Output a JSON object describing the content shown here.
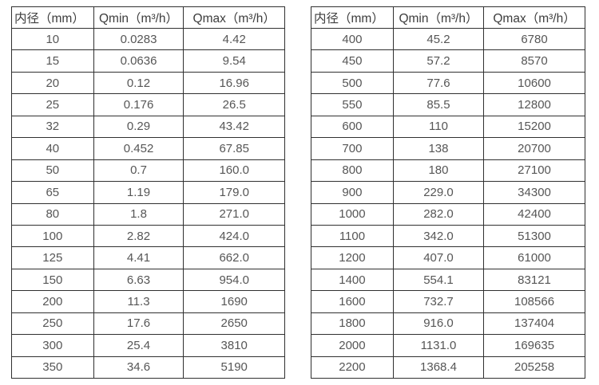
{
  "colors": {
    "background": "#ffffff",
    "border": "#303030",
    "header_text": "#3d3d3d",
    "cell_text": "#565656"
  },
  "tables": [
    {
      "name": "small-diameters",
      "headers": [
        "内径（mm）",
        "Qmin（m³/h）",
        "Qmax（m³/h）"
      ],
      "rows": [
        [
          "10",
          "0.0283",
          "4.42"
        ],
        [
          "15",
          "0.0636",
          "9.54"
        ],
        [
          "20",
          "0.12",
          "16.96"
        ],
        [
          "25",
          "0.176",
          "26.5"
        ],
        [
          "32",
          "0.29",
          "43.42"
        ],
        [
          "40",
          "0.452",
          "67.85"
        ],
        [
          "50",
          "0.7",
          "160.0"
        ],
        [
          "65",
          "1.19",
          "179.0"
        ],
        [
          "80",
          "1.8",
          "271.0"
        ],
        [
          "100",
          "2.82",
          "424.0"
        ],
        [
          "125",
          "4.41",
          "662.0"
        ],
        [
          "150",
          "6.63",
          "954.0"
        ],
        [
          "200",
          "11.3",
          "1690"
        ],
        [
          "250",
          "17.6",
          "2650"
        ],
        [
          "300",
          "25.4",
          "3810"
        ],
        [
          "350",
          "34.6",
          "5190"
        ]
      ]
    },
    {
      "name": "large-diameters",
      "headers": [
        "内径（mm）",
        "Qmin（m³/h）",
        "Qmax（m³/h）"
      ],
      "rows": [
        [
          "400",
          "45.2",
          "6780"
        ],
        [
          "450",
          "57.2",
          "8570"
        ],
        [
          "500",
          "77.6",
          "10600"
        ],
        [
          "550",
          "85.5",
          "12800"
        ],
        [
          "600",
          "110",
          "15200"
        ],
        [
          "700",
          "138",
          "20700"
        ],
        [
          "800",
          "180",
          "27100"
        ],
        [
          "900",
          "229.0",
          "34300"
        ],
        [
          "1000",
          "282.0",
          "42400"
        ],
        [
          "1100",
          "342.0",
          "51300"
        ],
        [
          "1200",
          "407.0",
          "61000"
        ],
        [
          "1400",
          "554.1",
          "83121"
        ],
        [
          "1600",
          "732.7",
          "108566"
        ],
        [
          "1800",
          "916.0",
          "137404"
        ],
        [
          "2000",
          "1131.0",
          "169635"
        ],
        [
          "2200",
          "1368.4",
          "205258"
        ]
      ]
    }
  ]
}
